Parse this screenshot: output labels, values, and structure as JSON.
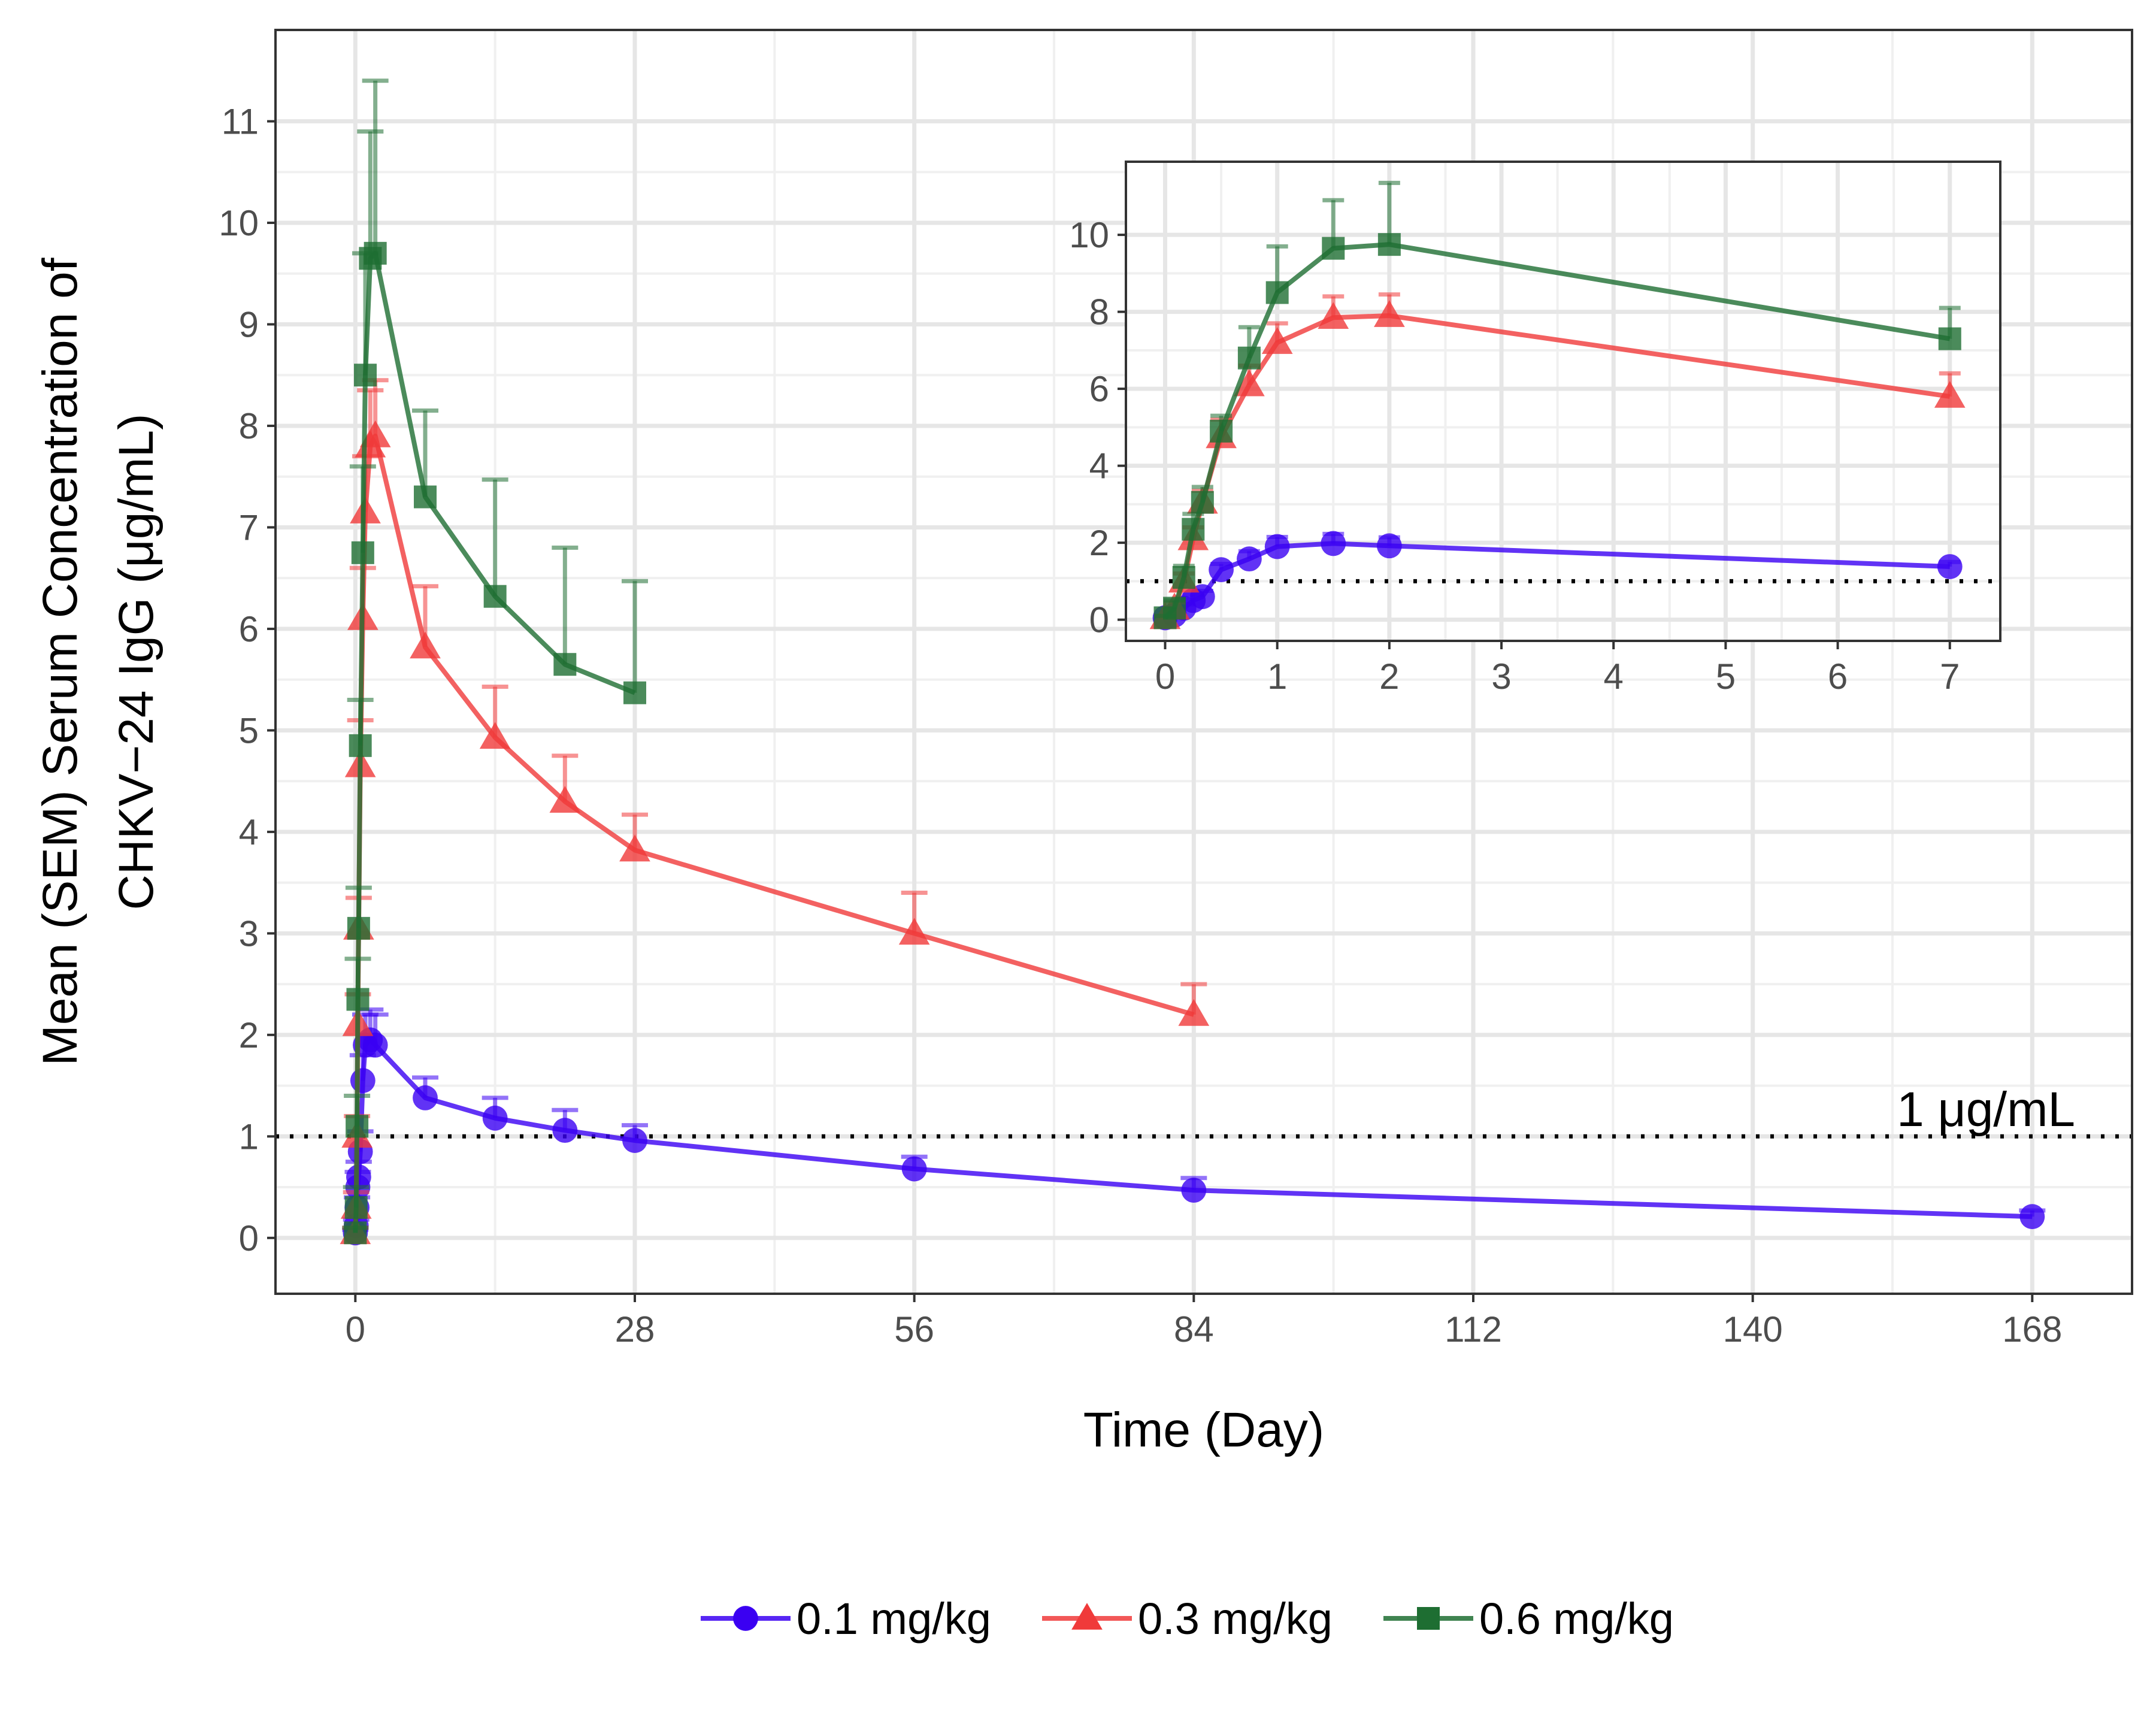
{
  "chart_data": [
    {
      "id": "main",
      "type": "line",
      "title": "",
      "xlabel": "Time (Day)",
      "ylabel_lines": [
        "Mean (SEM) Serum Concentration of",
        "CHKV−24 IgG (μg/mL)"
      ],
      "xlim": [
        -8,
        178
      ],
      "ylim": [
        -0.55,
        11.9
      ],
      "x_ticks": [
        0,
        28,
        56,
        84,
        112,
        140,
        168
      ],
      "y_ticks": [
        0,
        1,
        2,
        3,
        4,
        5,
        6,
        7,
        8,
        9,
        10,
        11
      ],
      "reference_line": {
        "y": 1,
        "label": "1 μg/mL"
      },
      "series": [
        {
          "name": "0.1 mg/kg",
          "color": "#3a00f2",
          "marker": "circle",
          "x": [
            0,
            0.083,
            0.167,
            0.25,
            0.333,
            0.5,
            0.75,
            1,
            1.5,
            2,
            7,
            14,
            21,
            28,
            56,
            84,
            168
          ],
          "y": [
            0.05,
            0.12,
            0.3,
            0.5,
            0.6,
            0.85,
            1.55,
            1.9,
            1.95,
            1.9,
            1.38,
            1.18,
            1.06,
            0.96,
            0.68,
            0.47,
            0.21
          ],
          "err": [
            0.03,
            0.06,
            0.1,
            0.15,
            0.15,
            0.2,
            0.25,
            0.3,
            0.3,
            0.3,
            0.2,
            0.2,
            0.2,
            0.15,
            0.12,
            0.12,
            0.06
          ]
        },
        {
          "name": "0.3 mg/kg",
          "color": "#f03a3a",
          "marker": "triangle",
          "x": [
            0,
            0.083,
            0.167,
            0.25,
            0.333,
            0.5,
            0.75,
            1,
            1.5,
            2,
            7,
            14,
            21,
            28,
            56,
            84
          ],
          "y": [
            0.05,
            0.3,
            1.0,
            2.1,
            3.05,
            4.65,
            6.1,
            7.15,
            7.8,
            7.9,
            5.82,
            4.93,
            4.3,
            3.82,
            3.0,
            2.2
          ],
          "err": [
            0.05,
            0.15,
            0.2,
            0.3,
            0.3,
            0.45,
            0.5,
            0.55,
            0.55,
            0.55,
            0.6,
            0.5,
            0.45,
            0.35,
            0.4,
            0.3
          ]
        },
        {
          "name": "0.6 mg/kg",
          "color": "#1e6e32",
          "marker": "square",
          "x": [
            0,
            0.083,
            0.167,
            0.25,
            0.333,
            0.5,
            0.75,
            1,
            1.5,
            2,
            7,
            14,
            21,
            28
          ],
          "y": [
            0.05,
            0.3,
            1.1,
            2.35,
            3.05,
            4.85,
            6.75,
            8.5,
            9.65,
            9.7,
            7.3,
            6.32,
            5.65,
            5.37
          ],
          "err": [
            0.05,
            0.2,
            0.3,
            0.4,
            0.4,
            0.45,
            0.85,
            1.2,
            1.25,
            1.7,
            0.85,
            1.15,
            1.15,
            1.1
          ]
        }
      ]
    },
    {
      "id": "inset",
      "type": "line",
      "title": "",
      "xlim": [
        -0.35,
        7.45
      ],
      "ylim": [
        -0.55,
        11.9
      ],
      "x_ticks": [
        0,
        1,
        2,
        3,
        4,
        5,
        6,
        7
      ],
      "y_ticks": [
        0,
        2,
        4,
        6,
        8,
        10
      ],
      "reference_line": {
        "y": 1
      },
      "series": [
        {
          "name": "0.1 mg/kg",
          "color": "#3a00f2",
          "marker": "circle",
          "x": [
            0,
            0.083,
            0.167,
            0.25,
            0.333,
            0.5,
            0.75,
            1,
            1.5,
            2,
            7
          ],
          "y": [
            0.05,
            0.12,
            0.3,
            0.5,
            0.6,
            1.3,
            1.58,
            1.9,
            1.98,
            1.92,
            1.38
          ],
          "err": [
            0.03,
            0.06,
            0.1,
            0.15,
            0.15,
            0.15,
            0.2,
            0.25,
            0.25,
            0.22,
            0.12
          ]
        },
        {
          "name": "0.3 mg/kg",
          "color": "#f03a3a",
          "marker": "triangle",
          "x": [
            0,
            0.083,
            0.167,
            0.25,
            0.333,
            0.5,
            0.75,
            1,
            1.5,
            2,
            7
          ],
          "y": [
            0.05,
            0.3,
            1.0,
            2.1,
            3.05,
            4.75,
            6.1,
            7.2,
            7.85,
            7.9,
            5.8
          ],
          "err": [
            0.05,
            0.15,
            0.2,
            0.3,
            0.3,
            0.45,
            0.5,
            0.5,
            0.55,
            0.55,
            0.6
          ]
        },
        {
          "name": "0.6 mg/kg",
          "color": "#1e6e32",
          "marker": "square",
          "x": [
            0,
            0.083,
            0.167,
            0.25,
            0.333,
            0.5,
            0.75,
            1,
            1.5,
            2,
            7
          ],
          "y": [
            0.05,
            0.3,
            1.1,
            2.35,
            3.05,
            4.9,
            6.8,
            8.5,
            9.65,
            9.75,
            7.3
          ],
          "err": [
            0.05,
            0.2,
            0.3,
            0.4,
            0.4,
            0.4,
            0.8,
            1.2,
            1.25,
            1.6,
            0.8
          ]
        }
      ]
    }
  ],
  "legend": {
    "position": "bottom",
    "items": [
      {
        "label": "0.1 mg/kg",
        "color": "#3a00f2",
        "marker": "circle"
      },
      {
        "label": "0.3 mg/kg",
        "color": "#f03a3a",
        "marker": "triangle"
      },
      {
        "label": "0.6 mg/kg",
        "color": "#1e6e32",
        "marker": "square"
      }
    ]
  }
}
